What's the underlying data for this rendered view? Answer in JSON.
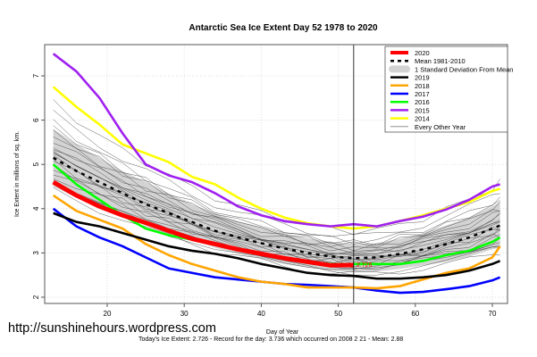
{
  "watermark": "http://sunshinehours.wordpress.com",
  "footer": "Today's Ice Extent: 2.726  - Record for the day: 3.736 which occurred on 2008 2 21  - Mean: 2.88",
  "chart_data": {
    "type": "line",
    "title": "Antarctic Sea Ice Extent Day 52 1978 to 2020",
    "xlabel": "Day of Year",
    "ylabel": "Ice Extent in millions of sq. km.",
    "xlim": [
      12,
      72
    ],
    "ylim": [
      1.85,
      7.7
    ],
    "xticks": [
      20,
      30,
      40,
      50,
      60,
      70
    ],
    "yticks": [
      2,
      3,
      4,
      5,
      6,
      7
    ],
    "grid": true,
    "marker_day": 52,
    "current_value_label": "2.726",
    "legend_position": "top-right",
    "legend": [
      {
        "label": "2020",
        "kind": "thick-line",
        "color": "#ff0000"
      },
      {
        "label": "Mean 1981-2010",
        "kind": "dashed",
        "color": "#000000"
      },
      {
        "label": "1 Standard Deviation From Mean",
        "kind": "band",
        "color": "#d3d3d3"
      },
      {
        "label": "2019",
        "kind": "line",
        "color": "#000000"
      },
      {
        "label": "2018",
        "kind": "line",
        "color": "#ffa500"
      },
      {
        "label": "2017",
        "kind": "line",
        "color": "#0000ff"
      },
      {
        "label": "2016",
        "kind": "line",
        "color": "#00ff00"
      },
      {
        "label": "2015",
        "kind": "line",
        "color": "#a020f0"
      },
      {
        "label": "2014",
        "kind": "line",
        "color": "#ffff00"
      },
      {
        "label": "Every Other Year",
        "kind": "thin-line",
        "color": "#808080"
      }
    ],
    "x": [
      13,
      16,
      19,
      22,
      25,
      28,
      31,
      34,
      37,
      40,
      43,
      46,
      49,
      52,
      55,
      58,
      61,
      64,
      67,
      70,
      71
    ],
    "mean": [
      5.15,
      4.85,
      4.6,
      4.35,
      4.1,
      3.9,
      3.7,
      3.5,
      3.35,
      3.22,
      3.1,
      3.0,
      2.92,
      2.88,
      2.9,
      2.98,
      3.08,
      3.2,
      3.35,
      3.55,
      3.62
    ],
    "sd_upper": [
      5.8,
      5.45,
      5.15,
      4.85,
      4.6,
      4.35,
      4.1,
      3.9,
      3.72,
      3.58,
      3.45,
      3.33,
      3.25,
      3.2,
      3.22,
      3.32,
      3.45,
      3.62,
      3.8,
      4.05,
      4.15
    ],
    "sd_lower": [
      4.5,
      4.25,
      4.05,
      3.85,
      3.62,
      3.45,
      3.3,
      3.12,
      2.98,
      2.86,
      2.75,
      2.67,
      2.6,
      2.56,
      2.58,
      2.64,
      2.72,
      2.8,
      2.92,
      3.08,
      3.12
    ],
    "series": [
      {
        "name": "2014",
        "color": "#ffff00",
        "values": [
          6.75,
          6.3,
          5.9,
          5.45,
          5.25,
          5.05,
          4.72,
          4.55,
          4.25,
          4.0,
          3.8,
          3.67,
          3.6,
          3.55,
          3.6,
          3.72,
          3.85,
          4.0,
          4.15,
          4.4,
          4.45
        ]
      },
      {
        "name": "2015",
        "color": "#a020f0",
        "values": [
          7.5,
          7.1,
          6.5,
          5.7,
          5.0,
          4.75,
          4.6,
          4.35,
          4.05,
          3.85,
          3.72,
          3.65,
          3.6,
          3.65,
          3.6,
          3.72,
          3.82,
          3.98,
          4.2,
          4.5,
          4.55
        ]
      },
      {
        "name": "2016",
        "color": "#00ff00",
        "values": [
          5.0,
          4.55,
          4.2,
          3.85,
          3.55,
          3.4,
          3.3,
          3.2,
          3.08,
          2.98,
          2.88,
          2.8,
          2.75,
          2.75,
          2.75,
          2.75,
          2.82,
          2.95,
          3.05,
          3.25,
          3.35
        ]
      },
      {
        "name": "2017",
        "color": "#0000ff",
        "values": [
          4.0,
          3.6,
          3.35,
          3.15,
          2.9,
          2.65,
          2.55,
          2.45,
          2.4,
          2.35,
          2.3,
          2.28,
          2.25,
          2.22,
          2.15,
          2.1,
          2.12,
          2.18,
          2.25,
          2.38,
          2.45
        ]
      },
      {
        "name": "2018",
        "color": "#ffa500",
        "values": [
          4.3,
          3.95,
          3.75,
          3.55,
          3.2,
          2.95,
          2.75,
          2.6,
          2.45,
          2.35,
          2.3,
          2.22,
          2.22,
          2.22,
          2.2,
          2.25,
          2.4,
          2.55,
          2.65,
          2.9,
          3.15
        ]
      },
      {
        "name": "2019",
        "color": "#000000",
        "values": [
          3.9,
          3.7,
          3.6,
          3.45,
          3.3,
          3.15,
          3.05,
          2.98,
          2.88,
          2.75,
          2.65,
          2.55,
          2.5,
          2.48,
          2.42,
          2.42,
          2.45,
          2.5,
          2.6,
          2.75,
          2.82
        ]
      },
      {
        "name": "2020",
        "color": "#ff0000",
        "values": [
          4.6,
          4.3,
          4.05,
          3.85,
          3.68,
          3.5,
          3.32,
          3.2,
          3.08,
          2.98,
          2.88,
          2.8,
          2.72,
          2.726
        ]
      }
    ]
  }
}
